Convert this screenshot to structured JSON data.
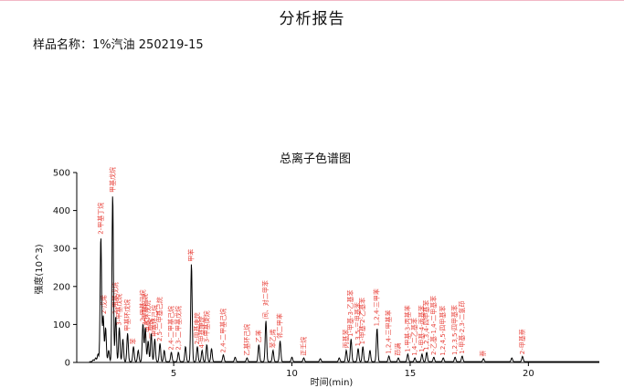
{
  "report": {
    "title": "分析报告",
    "sample_label": "样品名称：",
    "sample_value": "1%汽油 250219-15"
  },
  "colors": {
    "trace": "#000000",
    "peak_label": "#e8413a",
    "axis": "#000000",
    "top_rule": "#f2b8c6"
  },
  "chart_data": {
    "type": "line",
    "title": "总离子色谱图",
    "xlabel": "时间(min)",
    "ylabel": "强度(10^3)",
    "xlim": [
      0.9,
      23.0
    ],
    "ylim": [
      0,
      500
    ],
    "xticks": [
      5,
      10,
      15,
      20
    ],
    "yticks": [
      0,
      100,
      200,
      300,
      400,
      500
    ],
    "grid": false,
    "peaks": [
      {
        "x": 1.6,
        "y": 5
      },
      {
        "x": 1.7,
        "y": 10
      },
      {
        "x": 1.8,
        "y": 20
      },
      {
        "x": 1.92,
        "y": 330
      },
      {
        "x": 2.02,
        "y": 120
      },
      {
        "x": 2.12,
        "y": 90
      },
      {
        "x": 2.25,
        "y": 30
      },
      {
        "x": 2.42,
        "y": 440
      },
      {
        "x": 2.55,
        "y": 120
      },
      {
        "x": 2.7,
        "y": 90
      },
      {
        "x": 2.85,
        "y": 60
      },
      {
        "x": 3.05,
        "y": 75
      },
      {
        "x": 3.3,
        "y": 40
      },
      {
        "x": 3.5,
        "y": 30
      },
      {
        "x": 3.7,
        "y": 100
      },
      {
        "x": 3.8,
        "y": 90
      },
      {
        "x": 3.92,
        "y": 55
      },
      {
        "x": 4.05,
        "y": 75
      },
      {
        "x": 4.2,
        "y": 60
      },
      {
        "x": 4.42,
        "y": 48
      },
      {
        "x": 4.6,
        "y": 30
      },
      {
        "x": 4.9,
        "y": 25
      },
      {
        "x": 5.2,
        "y": 25
      },
      {
        "x": 5.5,
        "y": 40
      },
      {
        "x": 5.75,
        "y": 258
      },
      {
        "x": 6.0,
        "y": 40
      },
      {
        "x": 6.2,
        "y": 30
      },
      {
        "x": 6.4,
        "y": 45
      },
      {
        "x": 6.6,
        "y": 35
      },
      {
        "x": 7.1,
        "y": 18
      },
      {
        "x": 7.6,
        "y": 12
      },
      {
        "x": 8.1,
        "y": 10
      },
      {
        "x": 8.6,
        "y": 45
      },
      {
        "x": 8.9,
        "y": 108
      },
      {
        "x": 9.2,
        "y": 30
      },
      {
        "x": 9.5,
        "y": 55
      },
      {
        "x": 10.0,
        "y": 12
      },
      {
        "x": 10.5,
        "y": 10
      },
      {
        "x": 11.2,
        "y": 8
      },
      {
        "x": 12.0,
        "y": 10
      },
      {
        "x": 12.3,
        "y": 30
      },
      {
        "x": 12.5,
        "y": 60
      },
      {
        "x": 12.8,
        "y": 35
      },
      {
        "x": 13.0,
        "y": 40
      },
      {
        "x": 13.3,
        "y": 30
      },
      {
        "x": 13.6,
        "y": 88
      },
      {
        "x": 14.1,
        "y": 15
      },
      {
        "x": 14.5,
        "y": 10
      },
      {
        "x": 14.9,
        "y": 20
      },
      {
        "x": 15.2,
        "y": 10
      },
      {
        "x": 15.5,
        "y": 20
      },
      {
        "x": 15.7,
        "y": 25
      },
      {
        "x": 16.0,
        "y": 12
      },
      {
        "x": 16.4,
        "y": 10
      },
      {
        "x": 16.9,
        "y": 12
      },
      {
        "x": 17.2,
        "y": 15
      },
      {
        "x": 18.1,
        "y": 8
      },
      {
        "x": 19.3,
        "y": 10
      },
      {
        "x": 19.75,
        "y": 14
      }
    ],
    "annotations": [
      {
        "x": 1.92,
        "y": 330,
        "text": "2-甲基丁烷"
      },
      {
        "x": 2.05,
        "y": 120,
        "text": "2-戊烯"
      },
      {
        "x": 2.42,
        "y": 440,
        "text": "甲基戊烷"
      },
      {
        "x": 2.55,
        "y": 120,
        "text": "2-甲基戊烷"
      },
      {
        "x": 2.7,
        "y": 90,
        "text": "3-甲基戊烷"
      },
      {
        "x": 3.05,
        "y": 75,
        "text": "甲基环戊烷"
      },
      {
        "x": 3.3,
        "y": 40,
        "text": "苯"
      },
      {
        "x": 3.7,
        "y": 100,
        "text": "2-甲基己烷"
      },
      {
        "x": 3.8,
        "y": 90,
        "text": "3-甲基己烷"
      },
      {
        "x": 3.92,
        "y": 55,
        "text": "二甲基环戊烷"
      },
      {
        "x": 4.05,
        "y": 75,
        "text": "庚烷"
      },
      {
        "x": 4.2,
        "y": 60,
        "text": "甲基环己烷"
      },
      {
        "x": 4.42,
        "y": 48,
        "text": "2,5-二甲基己烷"
      },
      {
        "x": 4.9,
        "y": 25,
        "text": "2,4-二甲基己烷"
      },
      {
        "x": 5.2,
        "y": 25,
        "text": "2,3-二甲基戊烷"
      },
      {
        "x": 5.75,
        "y": 258,
        "text": "甲苯"
      },
      {
        "x": 6.0,
        "y": 40,
        "text": "2-甲基庚烷"
      },
      {
        "x": 6.2,
        "y": 30,
        "text": "4-甲基庚烷"
      },
      {
        "x": 6.4,
        "y": 45,
        "text": "3-甲基庚烷"
      },
      {
        "x": 7.1,
        "y": 18,
        "text": "2,4-二甲基己烷"
      },
      {
        "x": 8.1,
        "y": 10,
        "text": "乙基环己烷"
      },
      {
        "x": 8.6,
        "y": 45,
        "text": "乙苯"
      },
      {
        "x": 8.9,
        "y": 108,
        "text": "间、对二甲苯"
      },
      {
        "x": 9.2,
        "y": 30,
        "text": "苯乙烯"
      },
      {
        "x": 9.5,
        "y": 55,
        "text": "邻二甲苯"
      },
      {
        "x": 10.5,
        "y": 10,
        "text": "正壬烷"
      },
      {
        "x": 12.3,
        "y": 30,
        "text": "丙基苯"
      },
      {
        "x": 12.5,
        "y": 60,
        "text": "1-甲基-3-乙基苯"
      },
      {
        "x": 12.8,
        "y": 35,
        "text": "1,3,5-三甲基苯"
      },
      {
        "x": 13.0,
        "y": 40,
        "text": "1-甲基-2-乙基苯"
      },
      {
        "x": 13.6,
        "y": 88,
        "text": "1,2,4-三甲苯"
      },
      {
        "x": 14.1,
        "y": 15,
        "text": "1,2,4-三甲基苯"
      },
      {
        "x": 14.5,
        "y": 10,
        "text": "茚满"
      },
      {
        "x": 14.9,
        "y": 20,
        "text": "1-甲基-3-丙基苯"
      },
      {
        "x": 15.2,
        "y": 10,
        "text": "1,4-二乙基苯"
      },
      {
        "x": 15.5,
        "y": 20,
        "text": "1-甲基-4-丙基苯"
      },
      {
        "x": 15.7,
        "y": 25,
        "text": "1,2,3,4-四甲基苯"
      },
      {
        "x": 16.0,
        "y": 12,
        "text": "2-乙基-1,4-二甲基苯"
      },
      {
        "x": 16.4,
        "y": 10,
        "text": "1,2,4,5-四甲基苯"
      },
      {
        "x": 16.9,
        "y": 12,
        "text": "1,2,3,5-四甲基苯"
      },
      {
        "x": 17.2,
        "y": 15,
        "text": "1-甲基-2,3-二氢茚"
      },
      {
        "x": 18.1,
        "y": 8,
        "text": "萘"
      },
      {
        "x": 19.75,
        "y": 14,
        "text": "2-甲基萘"
      }
    ]
  }
}
